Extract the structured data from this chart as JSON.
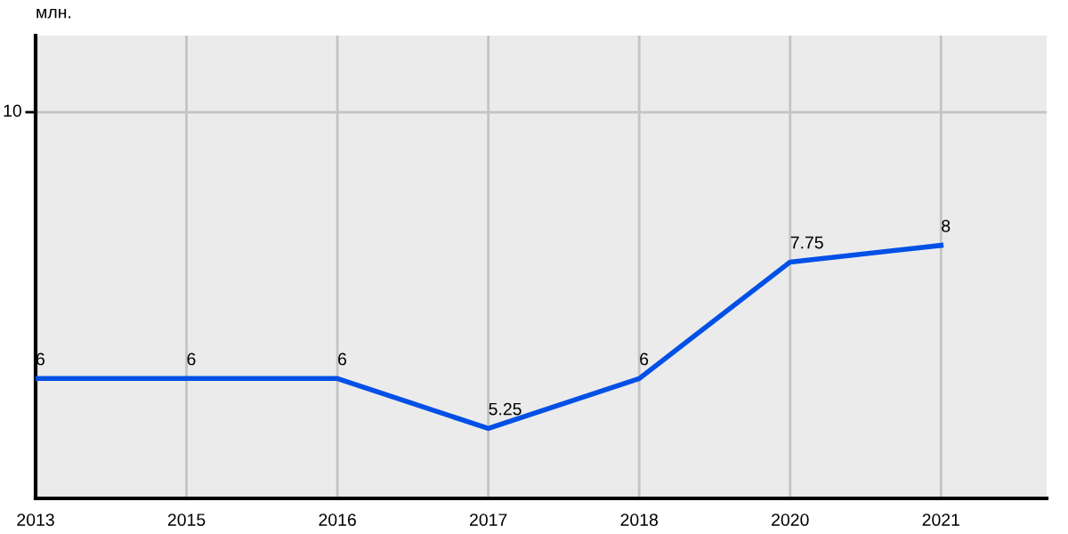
{
  "chart_data": {
    "type": "line",
    "ylabel": "млн.",
    "categories": [
      "2013",
      "2015",
      "2016",
      "2017",
      "2018",
      "2020",
      "2021"
    ],
    "series": [
      {
        "color": "#0050e6",
        "values": [
          6,
          6,
          6,
          5.25,
          6,
          7.75,
          8
        ]
      }
    ],
    "ylim": [
      4.2,
      11.15
    ],
    "ref_lines": [
      {
        "axis": "y",
        "value": 10,
        "label": "10",
        "color": "#c4c4c4"
      }
    ],
    "grid": "x",
    "data_labels": true,
    "marker": "none",
    "line_style": "solid"
  }
}
